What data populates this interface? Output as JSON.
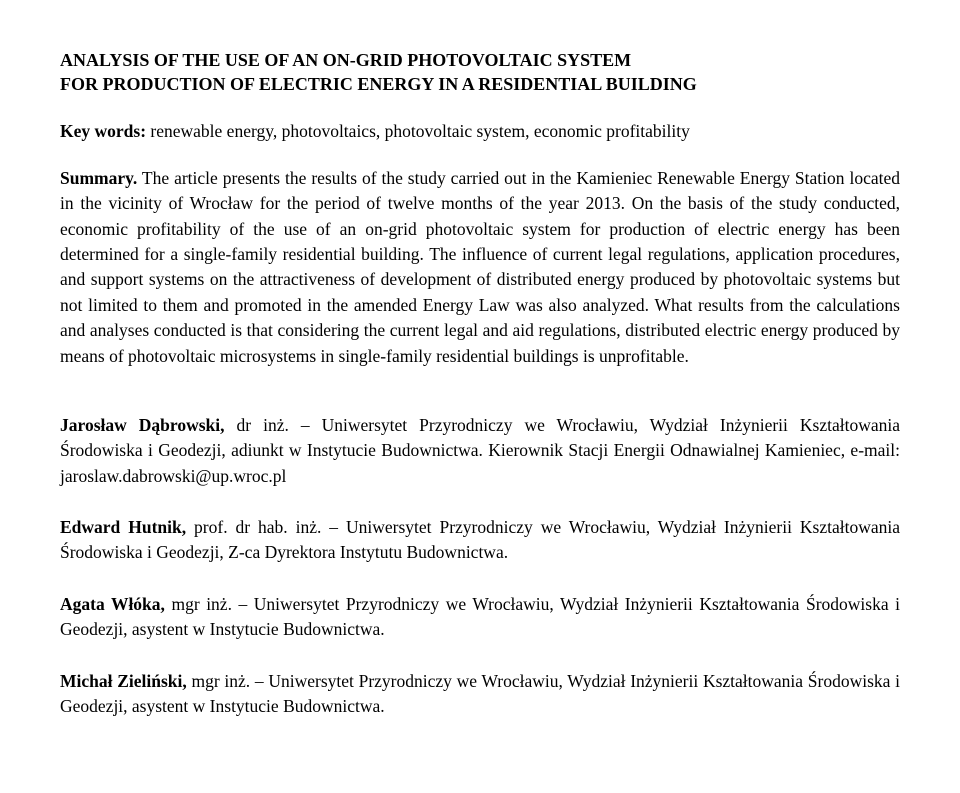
{
  "title_line1": "ANALYSIS OF THE USE  OF AN ON-GRID PHOTOVOLTAIC SYSTEM",
  "title_line2": "FOR PRODUCTION OF ELECTRIC ENERGY IN A RESIDENTIAL BUILDING",
  "keywords": {
    "label": "Key words:",
    "text": " renewable energy, photovoltaics, photovoltaic system, economic profitability"
  },
  "summary": {
    "label": "Summary.",
    "text": " The article presents the results of the study carried out in the Kamieniec Renewable Energy Station located in the vicinity of Wrocław for the period of twelve months of the year 2013. On the basis of the study conducted, economic profitability of the use of an on-grid photovoltaic system for production of electric energy has been determined for a single-family residential building. The influence of current legal regulations, application procedures, and support systems on the attractiveness of development of distributed energy produced  by photovoltaic systems but not limited to them and promoted in the amended Energy Law was also analyzed. What results from the calculations and analyses conducted is that considering the current legal and aid regulations, distributed electric energy produced by means of photovoltaic microsystems in single-family residential buildings is unprofitable."
  },
  "authors": [
    {
      "name": "Jarosław Dąbrowski,",
      "rest": " dr inż. – Uniwersytet Przyrodniczy we Wrocławiu, Wydział Inżynierii Kształtowania Środowiska i Geodezji, adiunkt w Instytucie Budownictwa. Kierownik Stacji Energii Odnawialnej Kamieniec, e-mail: jaroslaw.dabrowski@up.wroc.pl"
    },
    {
      "name": "Edward Hutnik,",
      "rest": " prof. dr hab. inż. – Uniwersytet Przyrodniczy we Wrocławiu, Wydział Inżynierii Kształtowania Środowiska i Geodezji, Z-ca Dyrektora Instytutu Budownictwa."
    },
    {
      "name": "Agata Włóka,",
      "rest": " mgr inż. – Uniwersytet Przyrodniczy we Wrocławiu, Wydział Inżynierii Kształtowania Środowiska i Geodezji, asystent w Instytucie Budownictwa."
    },
    {
      "name": "Michał Zieliński,",
      "rest": " mgr inż. – Uniwersytet Przyrodniczy we Wrocławiu, Wydział Inżynierii Kształtowania Środowiska i Geodezji, asystent w Instytucie Budownictwa."
    }
  ]
}
